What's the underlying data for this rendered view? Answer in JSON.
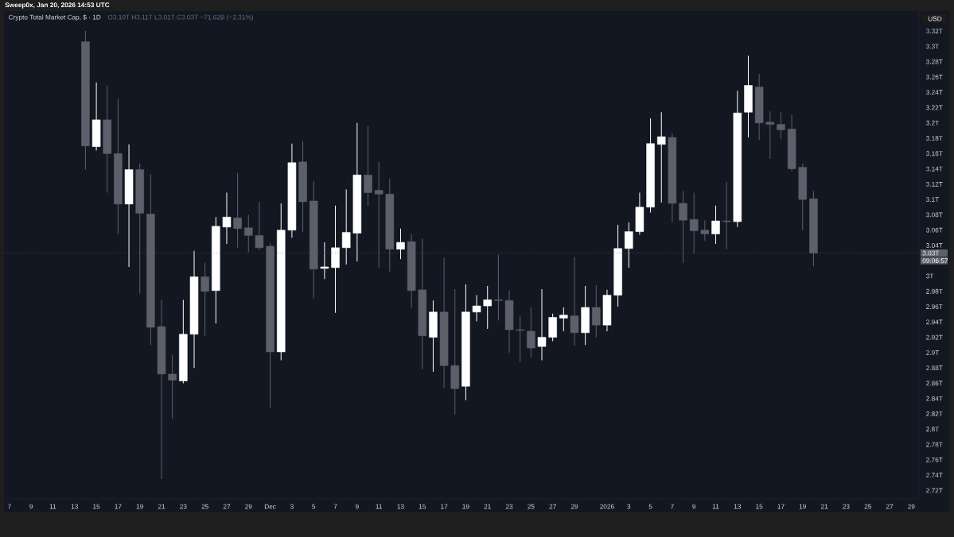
{
  "chart_data": {
    "type": "candlestick",
    "title": "Crypto Total Market Cap, $ · 1D",
    "subtitle": "O3.10T H3.11T L3.01T C3.03T −71.62B (−2.31%)",
    "ylabel": "USD",
    "annotations": [
      "Sweep0x, Jan 20, 2026 14:53 UTC",
      "09:06:57"
    ],
    "x": [
      "2025-11-14",
      "2025-11-15",
      "2025-11-16",
      "2025-11-17",
      "2025-11-18",
      "2025-11-19",
      "2025-11-20",
      "2025-11-21",
      "2025-11-22",
      "2025-11-23",
      "2025-11-24",
      "2025-11-25",
      "2025-11-26",
      "2025-11-27",
      "2025-11-28",
      "2025-11-29",
      "2025-11-30",
      "2025-12-01",
      "2025-12-02",
      "2025-12-03",
      "2025-12-04",
      "2025-12-05",
      "2025-12-06",
      "2025-12-07",
      "2025-12-08",
      "2025-12-09",
      "2025-12-10",
      "2025-12-11",
      "2025-12-12",
      "2025-12-13",
      "2025-12-14",
      "2025-12-15",
      "2025-12-16",
      "2025-12-17",
      "2025-12-18",
      "2025-12-19",
      "2025-12-20",
      "2025-12-21",
      "2025-12-22",
      "2025-12-23",
      "2025-12-24",
      "2025-12-25",
      "2025-12-26",
      "2025-12-27",
      "2025-12-28",
      "2025-12-29",
      "2025-12-30",
      "2025-12-31",
      "2026-01-01",
      "2026-01-02",
      "2026-01-03",
      "2026-01-04",
      "2026-01-05",
      "2026-01-06",
      "2026-01-07",
      "2026-01-08",
      "2026-01-09",
      "2026-01-10",
      "2026-01-11",
      "2026-01-12",
      "2026-01-13",
      "2026-01-14",
      "2026-01-15",
      "2026-01-16",
      "2026-01-17",
      "2026-01-18",
      "2026-01-19",
      "2026-01-20"
    ],
    "ohlc": [
      [
        3.306,
        3.32,
        3.139,
        3.17
      ],
      [
        3.169,
        3.253,
        3.164,
        3.204
      ],
      [
        3.204,
        3.249,
        3.109,
        3.16
      ],
      [
        3.16,
        3.231,
        3.055,
        3.094
      ],
      [
        3.094,
        3.172,
        3.012,
        3.139
      ],
      [
        3.139,
        3.147,
        2.977,
        3.082
      ],
      [
        3.081,
        3.133,
        2.91,
        2.933
      ],
      [
        2.934,
        2.969,
        2.735,
        2.872
      ],
      [
        2.872,
        2.897,
        2.814,
        2.864
      ],
      [
        2.863,
        2.969,
        2.86,
        2.924
      ],
      [
        2.924,
        3.033,
        2.88,
        2.999
      ],
      [
        2.999,
        3.017,
        2.922,
        2.98
      ],
      [
        2.981,
        3.077,
        2.938,
        3.065
      ],
      [
        3.064,
        3.109,
        3.042,
        3.077
      ],
      [
        3.076,
        3.135,
        3.037,
        3.062
      ],
      [
        3.063,
        3.08,
        3.031,
        3.053
      ],
      [
        3.053,
        3.097,
        3.034,
        3.037
      ],
      [
        3.039,
        3.043,
        2.828,
        2.901
      ],
      [
        2.901,
        3.095,
        2.89,
        3.06
      ],
      [
        3.06,
        3.173,
        3.05,
        3.148
      ],
      [
        3.149,
        3.176,
        3.057,
        3.097
      ],
      [
        3.098,
        3.124,
        2.971,
        3.009
      ],
      [
        3.01,
        3.044,
        2.996,
        3.012
      ],
      [
        3.011,
        3.092,
        2.952,
        3.037
      ],
      [
        3.037,
        3.113,
        3.015,
        3.057
      ],
      [
        3.056,
        3.2,
        3.019,
        3.132
      ],
      [
        3.132,
        3.196,
        3.091,
        3.109
      ],
      [
        3.112,
        3.149,
        3.011,
        3.107
      ],
      [
        3.107,
        3.127,
        3.006,
        3.035
      ],
      [
        3.035,
        3.062,
        3.022,
        3.044
      ],
      [
        3.045,
        3.055,
        2.959,
        2.981
      ],
      [
        2.982,
        3.049,
        2.878,
        2.922
      ],
      [
        2.92,
        2.968,
        2.875,
        2.953
      ],
      [
        2.953,
        3.024,
        2.854,
        2.883
      ],
      [
        2.883,
        2.983,
        2.819,
        2.853
      ],
      [
        2.856,
        2.989,
        2.838,
        2.953
      ],
      [
        2.953,
        2.975,
        2.941,
        2.961
      ],
      [
        2.961,
        2.987,
        2.931,
        2.969
      ],
      [
        2.969,
        3.028,
        2.942,
        2.968
      ],
      [
        2.968,
        2.981,
        2.9,
        2.93
      ],
      [
        2.93,
        2.948,
        2.888,
        2.929
      ],
      [
        2.928,
        2.959,
        2.894,
        2.906
      ],
      [
        2.908,
        2.983,
        2.89,
        2.92
      ],
      [
        2.92,
        2.951,
        2.915,
        2.946
      ],
      [
        2.945,
        2.959,
        2.928,
        2.949
      ],
      [
        2.948,
        3.025,
        2.909,
        2.926
      ],
      [
        2.926,
        2.987,
        2.91,
        2.959
      ],
      [
        2.959,
        2.988,
        2.92,
        2.936
      ],
      [
        2.936,
        2.982,
        2.928,
        2.975
      ],
      [
        2.975,
        3.067,
        2.96,
        3.036
      ],
      [
        3.036,
        3.07,
        3.011,
        3.058
      ],
      [
        3.058,
        3.109,
        3.054,
        3.09
      ],
      [
        3.09,
        3.206,
        3.083,
        3.173
      ],
      [
        3.172,
        3.214,
        3.096,
        3.182
      ],
      [
        3.181,
        3.186,
        3.07,
        3.095
      ],
      [
        3.095,
        3.111,
        3.017,
        3.073
      ],
      [
        3.074,
        3.109,
        3.029,
        3.059
      ],
      [
        3.06,
        3.073,
        3.046,
        3.055
      ],
      [
        3.055,
        3.092,
        3.042,
        3.072
      ],
      [
        3.072,
        3.123,
        3.035,
        3.071
      ],
      [
        3.071,
        3.242,
        3.064,
        3.213
      ],
      [
        3.214,
        3.288,
        3.181,
        3.249
      ],
      [
        3.247,
        3.264,
        3.178,
        3.2
      ],
      [
        3.201,
        3.215,
        3.153,
        3.198
      ],
      [
        3.198,
        3.214,
        3.179,
        3.191
      ],
      [
        3.192,
        3.211,
        3.137,
        3.14
      ],
      [
        3.142,
        3.147,
        3.06,
        3.1
      ],
      [
        3.101,
        3.111,
        3.013,
        3.03
      ]
    ],
    "colors": [
      "#5d606b",
      "#ffffff",
      "#5d606b",
      "#5d606b",
      "#ffffff",
      "#5d606b",
      "#5d606b",
      "#5d606b",
      "#5d606b",
      "#ffffff",
      "#ffffff",
      "#5d606b",
      "#ffffff",
      "#ffffff",
      "#5d606b",
      "#5d606b",
      "#5d606b",
      "#5d606b",
      "#ffffff",
      "#ffffff",
      "#5d606b",
      "#5d606b",
      "#ffffff",
      "#ffffff",
      "#ffffff",
      "#ffffff",
      "#5d606b",
      "#5d606b",
      "#5d606b",
      "#ffffff",
      "#5d606b",
      "#5d606b",
      "#ffffff",
      "#5d606b",
      "#5d606b",
      "#ffffff",
      "#ffffff",
      "#ffffff",
      "#5d606b",
      "#5d606b",
      "#5d606b",
      "#5d606b",
      "#ffffff",
      "#ffffff",
      "#ffffff",
      "#5d606b",
      "#ffffff",
      "#5d606b",
      "#ffffff",
      "#ffffff",
      "#ffffff",
      "#ffffff",
      "#ffffff",
      "#ffffff",
      "#5d606b",
      "#5d606b",
      "#5d606b",
      "#5d606b",
      "#ffffff",
      "#5d606b",
      "#ffffff",
      "#ffffff",
      "#5d606b",
      "#5d606b",
      "#5d606b",
      "#5d606b",
      "#5d606b",
      "#5d606b"
    ],
    "xlim": [
      "2025-11-06T12:00",
      "2026-01-29T17:00"
    ],
    "ylim": [
      2.709,
      3.346
    ],
    "xticks": [
      {
        "value": "2025-11-07",
        "label": "7"
      },
      {
        "value": "2025-11-09",
        "label": "9"
      },
      {
        "value": "2025-11-11",
        "label": "11"
      },
      {
        "value": "2025-11-13",
        "label": "13"
      },
      {
        "value": "2025-11-15",
        "label": "15"
      },
      {
        "value": "2025-11-17",
        "label": "17"
      },
      {
        "value": "2025-11-19",
        "label": "19"
      },
      {
        "value": "2025-11-21",
        "label": "21"
      },
      {
        "value": "2025-11-23",
        "label": "23"
      },
      {
        "value": "2025-11-25",
        "label": "25"
      },
      {
        "value": "2025-11-27",
        "label": "27"
      },
      {
        "value": "2025-11-29",
        "label": "29"
      },
      {
        "value": "2025-12-01",
        "label": "Dec"
      },
      {
        "value": "2025-12-03",
        "label": "3"
      },
      {
        "value": "2025-12-05",
        "label": "5"
      },
      {
        "value": "2025-12-07",
        "label": "7"
      },
      {
        "value": "2025-12-09",
        "label": "9"
      },
      {
        "value": "2025-12-11",
        "label": "11"
      },
      {
        "value": "2025-12-13",
        "label": "13"
      },
      {
        "value": "2025-12-15",
        "label": "15"
      },
      {
        "value": "2025-12-17",
        "label": "17"
      },
      {
        "value": "2025-12-19",
        "label": "19"
      },
      {
        "value": "2025-12-21",
        "label": "21"
      },
      {
        "value": "2025-12-23",
        "label": "23"
      },
      {
        "value": "2025-12-25",
        "label": "25"
      },
      {
        "value": "2025-12-27",
        "label": "27"
      },
      {
        "value": "2025-12-29",
        "label": "29"
      },
      {
        "value": "2026-01-01",
        "label": "2026"
      },
      {
        "value": "2026-01-03",
        "label": "3"
      },
      {
        "value": "2026-01-05",
        "label": "5"
      },
      {
        "value": "2026-01-07",
        "label": "7"
      },
      {
        "value": "2026-01-09",
        "label": "9"
      },
      {
        "value": "2026-01-11",
        "label": "11"
      },
      {
        "value": "2026-01-13",
        "label": "13"
      },
      {
        "value": "2026-01-15",
        "label": "15"
      },
      {
        "value": "2026-01-17",
        "label": "17"
      },
      {
        "value": "2026-01-19",
        "label": "19"
      },
      {
        "value": "2026-01-21",
        "label": "21"
      },
      {
        "value": "2026-01-23",
        "label": "23"
      },
      {
        "value": "2026-01-25",
        "label": "25"
      },
      {
        "value": "2026-01-27",
        "label": "27"
      },
      {
        "value": "2026-01-29",
        "label": "29"
      }
    ],
    "yticks": [
      {
        "value": 2.72,
        "label": "2.72T"
      },
      {
        "value": 2.74,
        "label": "2.74T"
      },
      {
        "value": 2.76,
        "label": "2.76T"
      },
      {
        "value": 2.78,
        "label": "2.78T"
      },
      {
        "value": 2.8,
        "label": "2.8T"
      },
      {
        "value": 2.82,
        "label": "2.82T"
      },
      {
        "value": 2.84,
        "label": "2.84T"
      },
      {
        "value": 2.86,
        "label": "2.86T"
      },
      {
        "value": 2.88,
        "label": "2.88T"
      },
      {
        "value": 2.9,
        "label": "2.9T"
      },
      {
        "value": 2.92,
        "label": "2.92T"
      },
      {
        "value": 2.94,
        "label": "2.94T"
      },
      {
        "value": 2.96,
        "label": "2.96T"
      },
      {
        "value": 2.98,
        "label": "2.98T"
      },
      {
        "value": 3.0,
        "label": "3T"
      },
      {
        "value": 3.04,
        "label": "3.04T"
      },
      {
        "value": 3.06,
        "label": "3.06T"
      },
      {
        "value": 3.08,
        "label": "3.08T"
      },
      {
        "value": 3.1,
        "label": "3.1T"
      },
      {
        "value": 3.12,
        "label": "3.12T"
      },
      {
        "value": 3.14,
        "label": "3.14T"
      },
      {
        "value": 3.16,
        "label": "3.16T"
      },
      {
        "value": 3.18,
        "label": "3.18T"
      },
      {
        "value": 3.2,
        "label": "3.2T"
      },
      {
        "value": 3.22,
        "label": "3.22T"
      },
      {
        "value": 3.24,
        "label": "3.24T"
      },
      {
        "value": 3.26,
        "label": "3.26T"
      },
      {
        "value": 3.28,
        "label": "3.28T"
      },
      {
        "value": 3.3,
        "label": "3.3T"
      },
      {
        "value": 3.32,
        "label": "3.32T"
      }
    ],
    "ref_lines": [
      {
        "axis": "y",
        "value": 3.03,
        "label": "3.03T",
        "color": "#5d606b",
        "line_style": "dotted"
      }
    ]
  }
}
